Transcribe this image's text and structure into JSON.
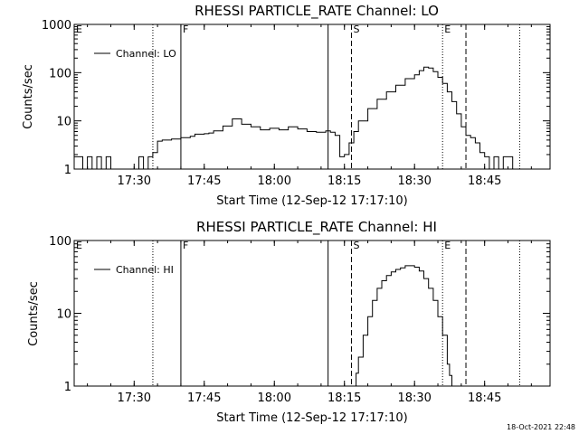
{
  "chart_data": [
    {
      "type": "line",
      "title": "RHESSI PARTICLE_RATE Channel: LO",
      "xlabel": "Start Time (12-Sep-12 17:17:10)",
      "ylabel": "Counts/sec",
      "xlim": [
        "17:17:10",
        "18:59:00"
      ],
      "ylim": [
        1,
        1000
      ],
      "yscale": "log",
      "x_ticks": [
        "17:30",
        "17:45",
        "18:00",
        "18:15",
        "18:30",
        "18:45"
      ],
      "y_ticks": [
        "1",
        "10",
        "100",
        "1000"
      ],
      "legend": {
        "placement": "top-left",
        "entries": [
          "Channel: LO"
        ]
      },
      "markers": [
        {
          "label": "E",
          "time": "17:17:10",
          "style": "dotted"
        },
        {
          "label": "",
          "time": "17:34:00",
          "style": "dotted"
        },
        {
          "label": "F",
          "time": "17:40:00",
          "style": "solid"
        },
        {
          "label": "",
          "time": "18:11:30",
          "style": "solid"
        },
        {
          "label": "S",
          "time": "18:16:30",
          "style": "dashed"
        },
        {
          "label": "E",
          "time": "18:36:00",
          "style": "dotted"
        },
        {
          "label": "",
          "time": "18:41:00",
          "style": "dashed"
        },
        {
          "label": "",
          "time": "18:52:30",
          "style": "dotted"
        }
      ],
      "series": [
        {
          "name": "Channel: LO",
          "x": [
            "17:17:10",
            "17:19:00",
            "17:20:00",
            "17:21:00",
            "17:22:00",
            "17:23:00",
            "17:24:00",
            "17:25:00",
            "17:26:00",
            "17:28:00",
            "17:30:00",
            "17:31:00",
            "17:32:00",
            "17:33:00",
            "17:34:00",
            "17:35:00",
            "17:36:00",
            "17:38:00",
            "17:40:00",
            "17:42:00",
            "17:43:00",
            "17:45:00",
            "17:46:00",
            "17:47:00",
            "17:49:00",
            "17:51:00",
            "17:53:00",
            "17:55:00",
            "17:57:00",
            "17:59:00",
            "18:01:00",
            "18:03:00",
            "18:05:00",
            "18:07:00",
            "18:09:00",
            "18:11:00",
            "18:12:00",
            "18:13:00",
            "18:14:00",
            "18:15:00",
            "18:16:00",
            "18:17:00",
            "18:18:00",
            "18:20:00",
            "18:22:00",
            "18:24:00",
            "18:26:00",
            "18:28:00",
            "18:30:00",
            "18:31:00",
            "18:32:00",
            "18:33:00",
            "18:34:00",
            "18:35:00",
            "18:36:00",
            "18:37:00",
            "18:38:00",
            "18:39:00",
            "18:40:00",
            "18:41:00",
            "18:42:00",
            "18:43:00",
            "18:44:00",
            "18:45:00",
            "18:46:00",
            "18:47:00",
            "18:48:00",
            "18:49:00",
            "18:50:00",
            "18:51:00"
          ],
          "y": [
            1.8,
            1.0,
            1.8,
            1.0,
            1.8,
            1.0,
            1.8,
            1.0,
            1.0,
            1.0,
            1.0,
            1.8,
            1.0,
            1.8,
            2.2,
            3.8,
            4.0,
            4.2,
            4.5,
            4.8,
            5.3,
            5.4,
            5.6,
            6.2,
            7.8,
            11.0,
            8.5,
            7.5,
            6.5,
            7.0,
            6.5,
            7.5,
            6.8,
            6.0,
            5.8,
            6.2,
            5.8,
            5.0,
            1.8,
            2.0,
            3.5,
            6.0,
            10.0,
            18.0,
            28.0,
            40.0,
            55.0,
            75.0,
            90.0,
            110.0,
            130.0,
            125.0,
            105.0,
            80.0,
            60.0,
            40.0,
            25.0,
            14.0,
            7.5,
            5.0,
            4.5,
            3.5,
            2.2,
            1.8,
            1.0,
            1.8,
            1.0,
            1.8,
            1.8,
            1.0
          ]
        }
      ]
    },
    {
      "type": "line",
      "title": "RHESSI PARTICLE_RATE Channel: HI",
      "xlabel": "Start Time (12-Sep-12 17:17:10)",
      "ylabel": "Counts/sec",
      "xlim": [
        "17:17:10",
        "18:59:00"
      ],
      "ylim": [
        1,
        100
      ],
      "yscale": "log",
      "x_ticks": [
        "17:30",
        "17:45",
        "18:00",
        "18:15",
        "18:30",
        "18:45"
      ],
      "y_ticks": [
        "1",
        "10",
        "100"
      ],
      "legend": {
        "placement": "top-left",
        "entries": [
          "Channel: HI"
        ]
      },
      "markers": [
        {
          "label": "E",
          "time": "17:17:10",
          "style": "dotted"
        },
        {
          "label": "",
          "time": "17:34:00",
          "style": "dotted"
        },
        {
          "label": "F",
          "time": "17:40:00",
          "style": "solid"
        },
        {
          "label": "",
          "time": "18:11:30",
          "style": "solid"
        },
        {
          "label": "S",
          "time": "18:16:30",
          "style": "dashed"
        },
        {
          "label": "E",
          "time": "18:36:00",
          "style": "dotted"
        },
        {
          "label": "",
          "time": "18:41:00",
          "style": "dashed"
        },
        {
          "label": "",
          "time": "18:52:30",
          "style": "dotted"
        }
      ],
      "series": [
        {
          "name": "Channel: HI",
          "x": [
            "18:17:00",
            "18:17:30",
            "18:18:00",
            "18:19:00",
            "18:20:00",
            "18:21:00",
            "18:22:00",
            "18:23:00",
            "18:24:00",
            "18:25:00",
            "18:26:00",
            "18:27:00",
            "18:28:00",
            "18:29:00",
            "18:30:00",
            "18:31:00",
            "18:32:00",
            "18:33:00",
            "18:34:00",
            "18:35:00",
            "18:36:00",
            "18:37:00",
            "18:37:30",
            "18:38:00"
          ],
          "y": [
            1.0,
            1.5,
            2.5,
            5.0,
            9.0,
            15.0,
            22.0,
            28.0,
            33.0,
            37.0,
            40.0,
            42.0,
            45.0,
            45.0,
            43.0,
            38.0,
            30.0,
            22.0,
            15.0,
            9.0,
            5.0,
            2.0,
            1.4,
            1.0
          ]
        }
      ]
    }
  ],
  "timestamp": "18-Oct-2021 22:48"
}
